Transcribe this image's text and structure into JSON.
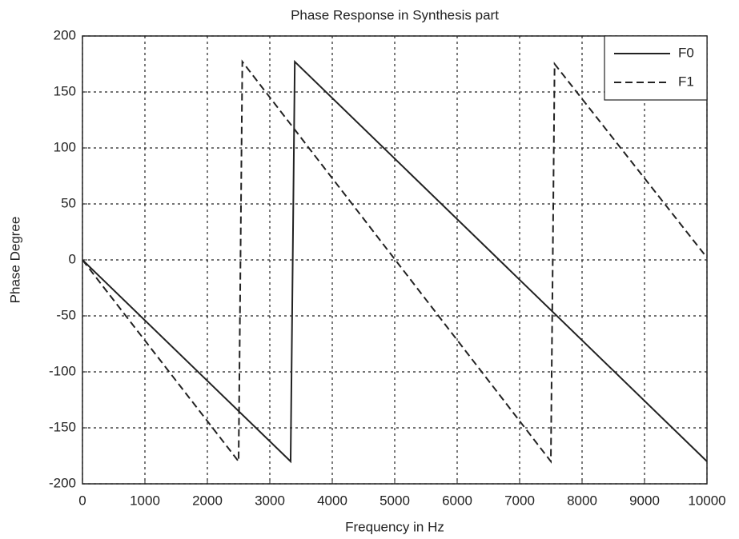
{
  "chart_data": {
    "type": "line",
    "title": "Phase Response in Synthesis part",
    "x_label": "Frequency in Hz",
    "y_label": "Phase Degree",
    "xlim": [
      0,
      10000
    ],
    "ylim": [
      -200,
      200
    ],
    "xticks": [
      0,
      1000,
      2000,
      3000,
      4000,
      5000,
      6000,
      7000,
      8000,
      9000,
      10000
    ],
    "yticks": [
      -200,
      -150,
      -100,
      -50,
      0,
      50,
      100,
      150,
      200
    ],
    "grid": true,
    "legend": "upper right",
    "series": [
      {
        "name": "F0",
        "color": "#222222",
        "dash": "solid",
        "x": [
          0,
          3333,
          3400,
          10000
        ],
        "values": [
          0,
          -180,
          177,
          -180
        ]
      },
      {
        "name": "F1",
        "color": "#222222",
        "dash": "dashed",
        "x": [
          0,
          2500,
          2560,
          7500,
          7560,
          10000
        ],
        "values": [
          0,
          -180,
          177,
          -180,
          175,
          2
        ]
      }
    ]
  }
}
